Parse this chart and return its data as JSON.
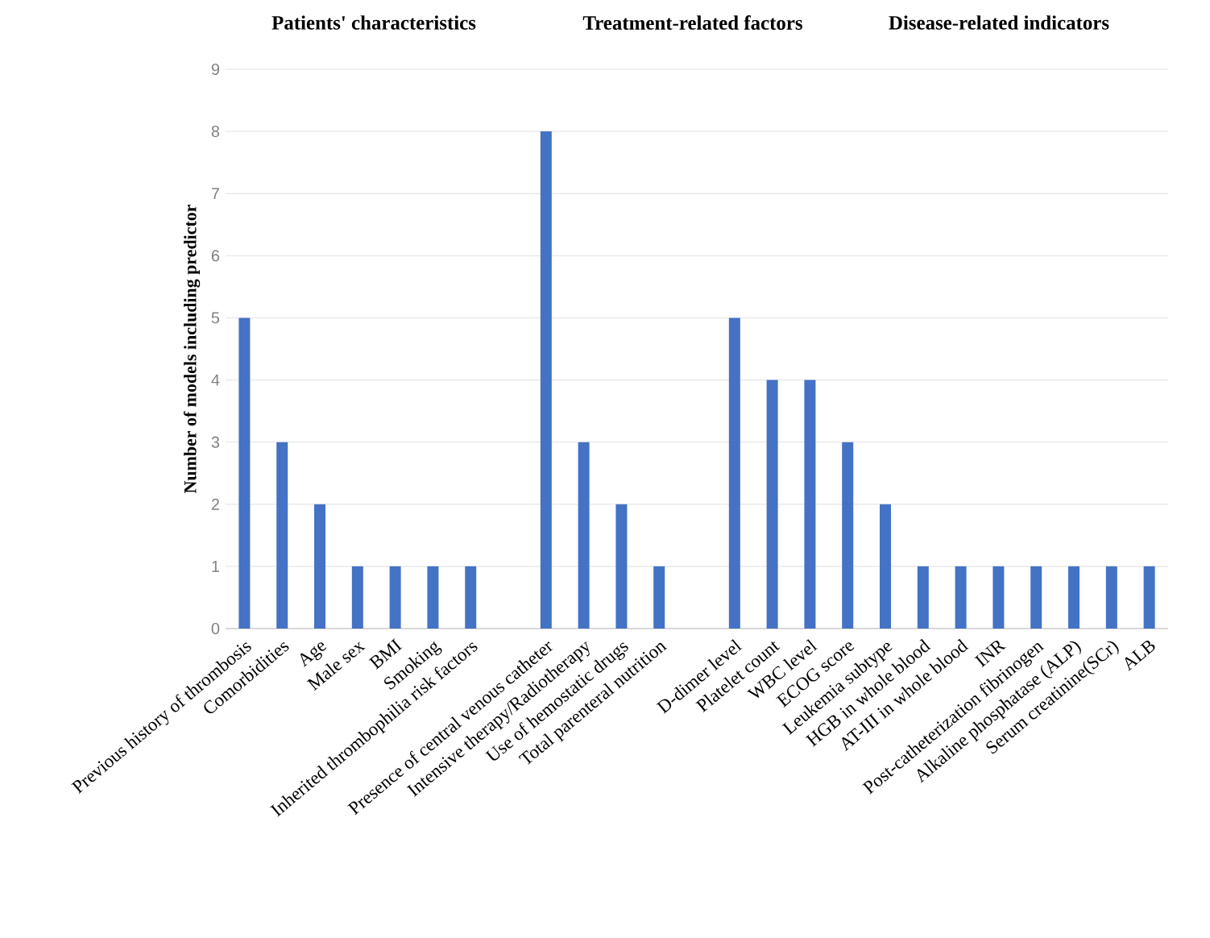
{
  "chart_data": {
    "type": "bar",
    "ylabel": "Number of models including predictor",
    "annotations": [
      "Patients' characteristics",
      "Treatment-related factors",
      "Disease-related indicators"
    ],
    "categories": [
      "Previous history of thrombosis",
      "Comorbidities",
      "Age",
      "Male sex",
      "BMI",
      "Smoking",
      "Inherited thrombophilia risk factors",
      null,
      "Presence of central venous catheter",
      "Intensive therapy/Radiotherapy",
      "Use of hemostatic drugs",
      "Total parenteral nutrition",
      null,
      "D-dimer level",
      "Platelet count",
      "WBC level",
      "ECOG score",
      "Leukemia subtype",
      "HGB in whole blood",
      "AT-III in whole blood",
      "INR",
      "Post-catheterization fibrinogen",
      "Alkaline phosphatase (ALP)",
      "Serum creatinine(SCr)",
      "ALB"
    ],
    "values": [
      5,
      3,
      2,
      1,
      1,
      1,
      1,
      null,
      8,
      3,
      2,
      1,
      null,
      5,
      4,
      4,
      3,
      2,
      1,
      1,
      1,
      1,
      1,
      1,
      1
    ],
    "color": "#4472c4",
    "ylim": [
      0,
      9
    ],
    "yticks": [
      0,
      1,
      2,
      3,
      4,
      5,
      6,
      7,
      8,
      9
    ],
    "grid": "y"
  }
}
